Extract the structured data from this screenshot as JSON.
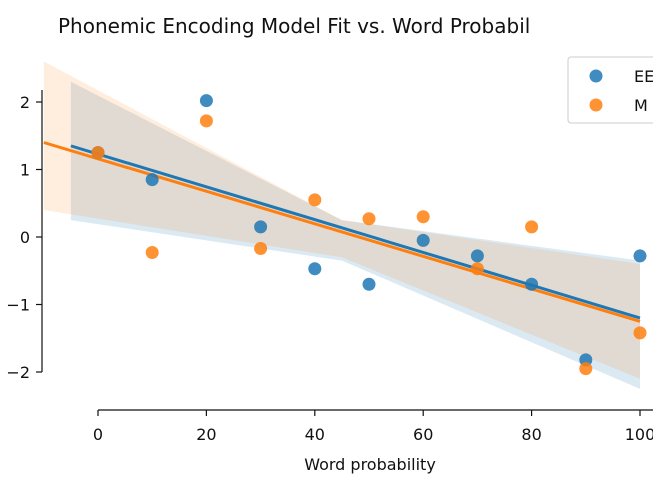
{
  "chart_data": {
    "type": "scatter",
    "title": "Phonemic Encoding Model Fit vs. Word Probabil",
    "xlabel": "Word probability",
    "ylabel": "",
    "xlim": [
      -10,
      100
    ],
    "ylim": [
      -2.2,
      2.5
    ],
    "x_ticks": [
      0,
      20,
      40,
      60,
      80,
      100
    ],
    "x_tick_labels": [
      "0",
      "20",
      "40",
      "60",
      "80",
      "100"
    ],
    "y_ticks": [
      -2,
      -1,
      0,
      1,
      2
    ],
    "y_tick_labels": [
      "−2",
      "−1",
      "0",
      "1",
      "2"
    ],
    "legend_position": "top-right",
    "grid": false,
    "series": [
      {
        "name": "EE",
        "color": "#1f77b4",
        "x": [
          0,
          10,
          20,
          30,
          40,
          50,
          60,
          70,
          80,
          90,
          100
        ],
        "y": [
          1.25,
          0.85,
          2.02,
          0.15,
          -0.47,
          -0.7,
          -0.05,
          -0.28,
          -0.7,
          -1.82,
          -0.28
        ],
        "fit_start": [
          -5,
          1.35
        ],
        "fit_end": [
          100,
          -1.2
        ],
        "band_low_start": [
          -5,
          0.25
        ],
        "band_low_mid": [
          45,
          -0.35
        ],
        "band_low_end": [
          100,
          -2.25
        ],
        "band_high_start": [
          -5,
          2.3
        ],
        "band_high_mid": [
          45,
          0.25
        ],
        "band_high_end": [
          100,
          -0.35
        ]
      },
      {
        "name": "M",
        "color": "#ff7f0e",
        "x": [
          0,
          10,
          20,
          30,
          40,
          50,
          60,
          70,
          80,
          90,
          100
        ],
        "y": [
          1.25,
          -0.23,
          1.72,
          -0.17,
          0.55,
          0.27,
          0.3,
          -0.47,
          0.15,
          -1.95,
          -1.42
        ],
        "fit_start": [
          -10,
          1.4
        ],
        "fit_end": [
          100,
          -1.25
        ],
        "band_low_start": [
          -10,
          0.4
        ],
        "band_low_mid": [
          45,
          -0.3
        ],
        "band_low_end": [
          100,
          -2.1
        ],
        "band_high_start": [
          -10,
          2.6
        ],
        "band_high_mid": [
          45,
          0.25
        ],
        "band_high_end": [
          100,
          -0.4
        ]
      }
    ]
  }
}
